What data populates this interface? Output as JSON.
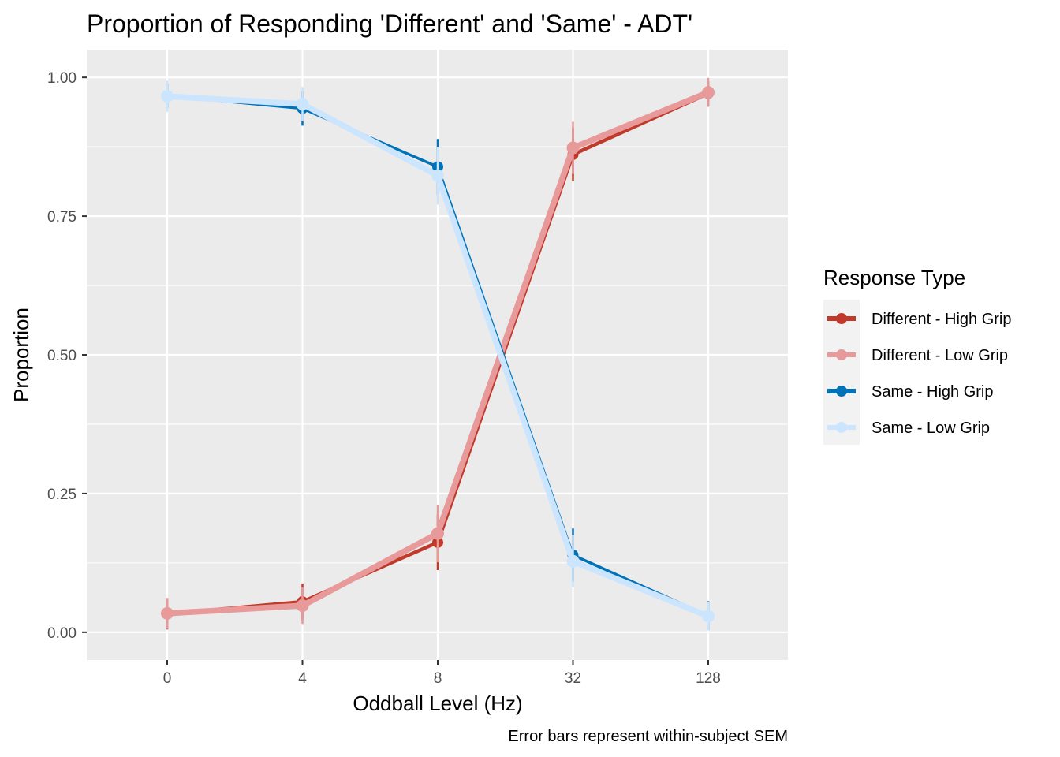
{
  "chart_data": {
    "type": "line",
    "title": "Proportion of Responding 'Different' and 'Same' - ADT'",
    "xlabel": "Oddball Level (Hz)",
    "ylabel": "Proportion",
    "caption": "Error bars represent within-subject SEM",
    "categories": [
      "0",
      "4",
      "8",
      "32",
      "128"
    ],
    "ylim": [
      -0.05,
      1.05
    ],
    "yticks": [
      0.0,
      0.25,
      0.5,
      0.75,
      1.0
    ],
    "ytick_labels": [
      "0.00",
      "0.25",
      "0.50",
      "0.75",
      "1.00"
    ],
    "grid": true,
    "legend": {
      "title": "Response Type",
      "placement": "right"
    },
    "series": [
      {
        "name": "Different - High Grip",
        "color": "#C0392B",
        "values": [
          0.033,
          0.055,
          0.162,
          0.861,
          0.971
        ],
        "sem": [
          0.028,
          0.033,
          0.05,
          0.048,
          0.022
        ]
      },
      {
        "name": "Different - Low Grip",
        "color": "#E8999A",
        "values": [
          0.034,
          0.048,
          0.178,
          0.873,
          0.973
        ],
        "sem": [
          0.028,
          0.033,
          0.052,
          0.047,
          0.026
        ]
      },
      {
        "name": "Same - High Grip",
        "color": "#0072B8",
        "values": [
          0.967,
          0.944,
          0.839,
          0.139,
          0.03
        ],
        "sem": [
          0.022,
          0.031,
          0.05,
          0.048,
          0.026
        ]
      },
      {
        "name": "Same - Low Grip",
        "color": "#CCE5FF",
        "values": [
          0.966,
          0.952,
          0.823,
          0.128,
          0.029
        ],
        "sem": [
          0.028,
          0.031,
          0.052,
          0.047,
          0.026
        ]
      }
    ]
  }
}
